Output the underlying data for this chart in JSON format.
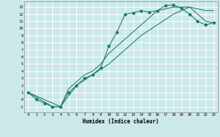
{
  "title": "",
  "xlabel": "Humidex (Indice chaleur)",
  "ylabel": "",
  "bg_color": "#cce8e8",
  "grid_color": "#ffffff",
  "line_color": "#1a7a6e",
  "xlim": [
    -0.5,
    23.5
  ],
  "ylim": [
    -1.8,
    13.8
  ],
  "xticks": [
    0,
    1,
    2,
    3,
    4,
    5,
    6,
    7,
    8,
    9,
    10,
    11,
    12,
    13,
    14,
    15,
    16,
    17,
    18,
    19,
    20,
    21,
    22,
    23
  ],
  "yticks": [
    -1,
    0,
    1,
    2,
    3,
    4,
    5,
    6,
    7,
    8,
    9,
    10,
    11,
    12,
    13
  ],
  "series": [
    {
      "x": [
        0,
        1,
        2,
        3,
        4,
        5,
        6,
        7,
        8,
        9,
        10,
        11,
        12,
        13,
        14,
        15,
        16,
        17,
        18,
        19,
        20,
        21,
        22,
        23
      ],
      "y": [
        1,
        0,
        -0.5,
        -1,
        -1,
        1,
        2,
        3,
        3.5,
        4.5,
        7.5,
        9.5,
        12,
        12.2,
        12.5,
        12.3,
        12.5,
        13.2,
        13.3,
        12.8,
        12,
        11,
        10.5,
        10.8
      ],
      "marker": "D",
      "markersize": 2.0
    },
    {
      "x": [
        0,
        3,
        4,
        5,
        6,
        7,
        8,
        9,
        10,
        12,
        14,
        16,
        18,
        20,
        22,
        23
      ],
      "y": [
        1,
        -1,
        -1,
        1.5,
        2.5,
        3.5,
        4,
        5,
        6.5,
        8.5,
        10.5,
        12.5,
        13,
        13,
        12.5,
        12.5
      ],
      "marker": null,
      "markersize": 0
    },
    {
      "x": [
        0,
        4,
        6,
        8,
        10,
        12,
        14,
        16,
        18,
        20,
        22,
        23
      ],
      "y": [
        1,
        -1,
        2,
        3.5,
        5,
        7,
        9,
        10.5,
        12,
        13,
        11,
        10.8
      ],
      "marker": null,
      "markersize": 0
    }
  ]
}
